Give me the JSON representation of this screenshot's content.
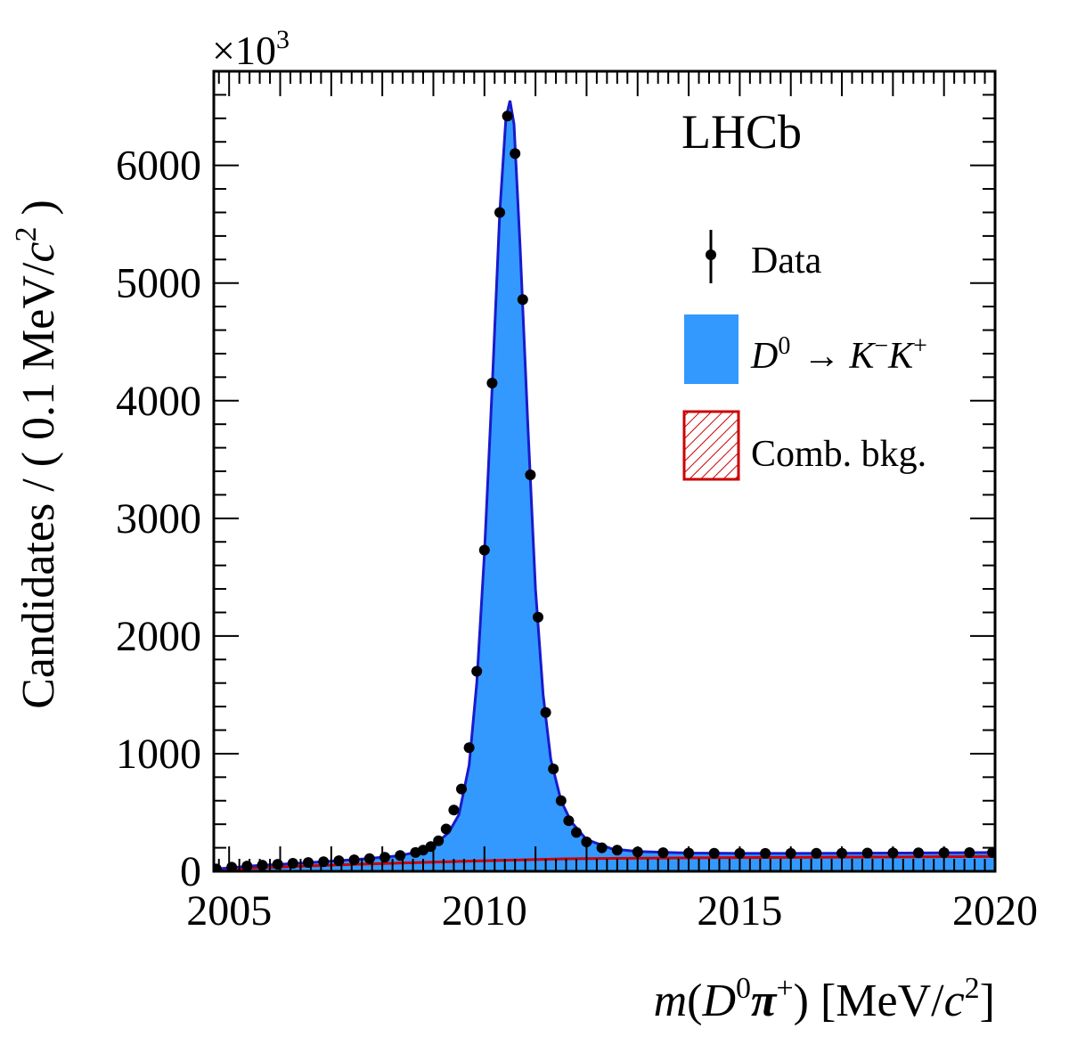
{
  "chart_data": {
    "type": "line",
    "experiment_label": "LHCb",
    "y_multiplier": "×10",
    "y_multiplier_exp": "3",
    "ylabel_main": "Candidates / ( 0.1 MeV/",
    "ylabel_c": "c",
    "ylabel_sup": "2",
    "ylabel_end": " )",
    "xlabel_m": "m",
    "xlabel_open": "(",
    "xlabel_D": "D",
    "xlabel_D_sup": "0",
    "xlabel_pi": "π",
    "xlabel_pi_sup": "+",
    "xlabel_close": ") [MeV/",
    "xlabel_c": "c",
    "xlabel_c_sup": "2",
    "xlabel_end": "]",
    "xlim": [
      2004.7,
      2020.0
    ],
    "ylim": [
      0,
      6800
    ],
    "x_ticks": [
      2005,
      2010,
      2015,
      2020
    ],
    "y_ticks": [
      0,
      1000,
      2000,
      3000,
      4000,
      5000,
      6000
    ],
    "legend": {
      "position": "top-right",
      "data_label": "Data",
      "signal_label_D": "D",
      "signal_label_D_sup": "0",
      "signal_label_arrow": "→",
      "signal_label_K1": "K",
      "signal_label_K1_sup": "−",
      "signal_label_K2": "K",
      "signal_label_K2_sup": "+",
      "bkg_label": "Comb. bkg."
    },
    "colors": {
      "signal_fill": "#3399ff",
      "fit_line": "#1a1acc",
      "bkg_line": "#cc0000",
      "bkg_hatch": "#cc0000",
      "data": "#000000"
    },
    "series": [
      {
        "name": "Data",
        "x": [
          2004.75,
          2005.05,
          2005.35,
          2005.65,
          2005.95,
          2006.25,
          2006.55,
          2006.85,
          2007.15,
          2007.45,
          2007.75,
          2008.05,
          2008.35,
          2008.65,
          2008.8,
          2008.95,
          2009.1,
          2009.25,
          2009.4,
          2009.55,
          2009.7,
          2009.85,
          2010.0,
          2010.15,
          2010.3,
          2010.45,
          2010.6,
          2010.75,
          2010.9,
          2011.05,
          2011.2,
          2011.35,
          2011.5,
          2011.65,
          2011.8,
          2012.0,
          2012.3,
          2012.6,
          2013.0,
          2013.5,
          2014.0,
          2014.5,
          2015.0,
          2015.5,
          2016.0,
          2016.5,
          2017.0,
          2017.5,
          2018.0,
          2018.5,
          2019.0,
          2019.5,
          2019.95
        ],
        "y": [
          20,
          35,
          45,
          52,
          60,
          68,
          75,
          82,
          90,
          98,
          108,
          120,
          135,
          160,
          180,
          210,
          260,
          360,
          520,
          700,
          1050,
          1700,
          2730,
          4150,
          5600,
          6420,
          6100,
          4860,
          3370,
          2160,
          1350,
          870,
          600,
          430,
          330,
          250,
          200,
          180,
          165,
          158,
          155,
          153,
          152,
          152,
          152,
          153,
          154,
          155,
          156,
          157,
          158,
          159,
          160
        ]
      },
      {
        "name": "Fit",
        "x": [
          2004.75,
          2005.5,
          2006.5,
          2007.5,
          2008.3,
          2008.7,
          2009.0,
          2009.3,
          2009.5,
          2009.7,
          2009.85,
          2010.0,
          2010.15,
          2010.3,
          2010.42,
          2010.5,
          2010.58,
          2010.7,
          2010.85,
          2011.0,
          2011.15,
          2011.3,
          2011.5,
          2011.7,
          2012.0,
          2012.5,
          2013.0,
          2014.0,
          2015.0,
          2016.0,
          2017.0,
          2018.0,
          2019.0,
          2020.0
        ],
        "y": [
          20,
          48,
          72,
          100,
          130,
          165,
          215,
          330,
          480,
          900,
          1600,
          2700,
          4100,
          5600,
          6400,
          6550,
          6350,
          5300,
          3800,
          2400,
          1500,
          950,
          600,
          420,
          270,
          190,
          168,
          155,
          152,
          152,
          153,
          155,
          157,
          160
        ]
      },
      {
        "name": "Comb. bkg.",
        "x": [
          2004.75,
          2005.5,
          2006.5,
          2007.5,
          2008.5,
          2009.5,
          2010.5,
          2011.5,
          2012.5,
          2013.5,
          2014.5,
          2015.5,
          2016.5,
          2017.5,
          2018.5,
          2019.5,
          2020.0
        ],
        "y": [
          10,
          28,
          45,
          60,
          72,
          84,
          95,
          105,
          110,
          113,
          115,
          117,
          119,
          121,
          123,
          125,
          126
        ]
      }
    ]
  }
}
